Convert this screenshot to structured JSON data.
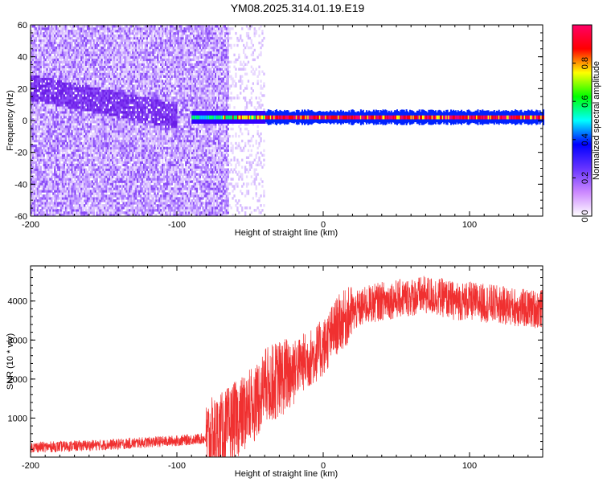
{
  "title": "YM08.2025.314.01.19.E19",
  "colors": {
    "snr_line": "#f03030",
    "ridge_violet": "#7722ee",
    "axis": "#000000"
  },
  "colormap": [
    "#ffffff",
    "#cc88ff",
    "#6633ff",
    "#0000ff",
    "#00ffff",
    "#00ff00",
    "#ffff00",
    "#ff0000",
    "#ff0066"
  ],
  "chart_data": [
    {
      "type": "heatmap",
      "title": "YM08.2025.314.01.19.E19",
      "xlabel": "Height of straight line (km)",
      "ylabel": "Frequency (Hz)",
      "xlim": [
        -200,
        150
      ],
      "ylim": [
        -60,
        60
      ],
      "xticks": [
        -200,
        -100,
        0,
        100
      ],
      "yticks": [
        -60,
        -40,
        -20,
        0,
        20,
        40,
        60
      ],
      "colorbar": {
        "label": "Normalized spectral amplitude",
        "range": [
          0,
          1
        ],
        "ticks": [
          0.0,
          0.2,
          0.4,
          0.6,
          0.8
        ]
      },
      "features": {
        "noise_region_x": [
          -200,
          -40
        ],
        "sparse_noise_x": [
          -65,
          -40
        ],
        "ridge_start_x": -90,
        "ridge_frequency_hz": 2,
        "peak_segment_x": [
          -40,
          150
        ],
        "peak_amplitude": 0.95
      }
    },
    {
      "type": "line",
      "xlabel": "Height of straight line (km)",
      "ylabel": "SNR (10 * v/v)",
      "xlim": [
        -200,
        150
      ],
      "ylim": [
        0,
        4900
      ],
      "xticks": [
        -200,
        -100,
        0,
        100
      ],
      "yticks": [
        1000,
        2000,
        3000,
        4000
      ],
      "series": [
        {
          "x": [
            -200,
            -180,
            -160,
            -140,
            -120,
            -100,
            -90,
            -80,
            -75,
            -70,
            -65,
            -60,
            -55,
            -50,
            -45,
            -40,
            -35,
            -30,
            -25,
            -20,
            -15,
            -10,
            -5,
            0,
            5,
            10,
            15,
            20,
            25,
            30,
            35,
            40,
            50,
            60,
            70,
            80,
            90,
            100,
            110,
            120,
            130,
            140,
            150
          ],
          "y": [
            250,
            270,
            300,
            330,
            380,
            420,
            450,
            480,
            550,
            650,
            800,
            950,
            1100,
            1250,
            1500,
            1800,
            1900,
            2000,
            2100,
            2250,
            2400,
            2500,
            2650,
            2800,
            3100,
            3400,
            3550,
            3700,
            3800,
            3900,
            3950,
            4000,
            4050,
            4100,
            4150,
            4100,
            4000,
            4000,
            3950,
            3900,
            3850,
            3800,
            3800
          ]
        }
      ]
    }
  ]
}
